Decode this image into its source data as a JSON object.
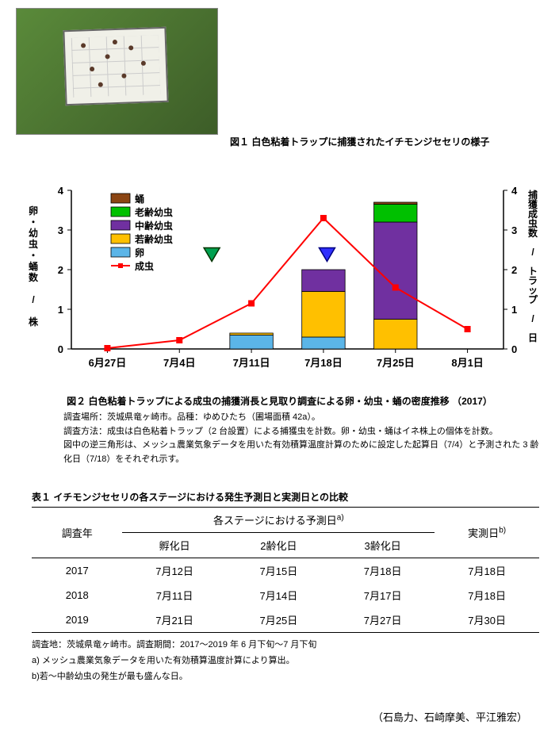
{
  "fig1": {
    "caption": "図１ 白色粘着トラップに捕獲されたイチモンジセセリの様子"
  },
  "chart": {
    "type": "combo-stacked-bar-line",
    "categories": [
      "6月27日",
      "7月4日",
      "7月11日",
      "7月18日",
      "7月25日",
      "8月1日"
    ],
    "left_axis": {
      "label": "卵・幼虫・蛹数 / 株",
      "ylim": [
        0,
        4
      ],
      "ticks": [
        0,
        1,
        2,
        3,
        4
      ],
      "label_fontsize": 12
    },
    "right_axis": {
      "label": "捕獲成虫数 / トラップ / 日",
      "ylim": [
        0,
        4
      ],
      "ticks": [
        0,
        1,
        2,
        3,
        4
      ],
      "label_fontsize": 12
    },
    "bar_width": 0.6,
    "series": [
      {
        "name": "蛹",
        "color": "#8b4513",
        "values": [
          0,
          0,
          0,
          0,
          0.05,
          0
        ]
      },
      {
        "name": "老齢幼虫",
        "color": "#00c000",
        "values": [
          0,
          0,
          0,
          0,
          0.45,
          0
        ]
      },
      {
        "name": "中齢幼虫",
        "color": "#7030a0",
        "values": [
          0,
          0,
          0,
          0.55,
          2.45,
          0
        ]
      },
      {
        "name": "若齢幼虫",
        "color": "#ffc000",
        "values": [
          0,
          0,
          0.05,
          1.15,
          0.75,
          0
        ]
      },
      {
        "name": "卵",
        "color": "#5bb5e8",
        "values": [
          0,
          0,
          0.35,
          0.3,
          0,
          0
        ]
      }
    ],
    "line_series": {
      "name": "成虫",
      "color": "#ff0000",
      "marker": "square",
      "marker_size": 7,
      "line_width": 2,
      "values": [
        0.02,
        0.22,
        1.15,
        3.3,
        1.55,
        0.5
      ]
    },
    "annotation_triangles": [
      {
        "x_index": 1.45,
        "color_fill": "#00a050",
        "color_stroke": "#003300"
      },
      {
        "x_index": 3.05,
        "color_fill": "#3030ff",
        "color_stroke": "#000080"
      }
    ],
    "tick_fontsize": 13,
    "background_color": "#ffffff",
    "axis_color": "#000000"
  },
  "fig2": {
    "caption": "図２ 白色粘着トラップによる成虫の捕獲消長と見取り調査による卵・幼虫・蛹の密度推移 （2017）",
    "note1": "調査場所：茨城県竜ヶ崎市。品種：ゆめひたち（圃場面積 42a）。",
    "note2": "調査方法：成虫は白色粘着トラップ（2 台設置）による捕獲虫を計数。卵・幼虫・蛹はイネ株上の個体を計数。",
    "note3": "図中の逆三角形は、メッシュ農業気象データを用いた有効積算温度計算のために設定した起算日（7/4）と予測された 3 齢化日（7/18）をそれぞれ示す。"
  },
  "table": {
    "title": "表１ イチモンジセセリの各ステージにおける発生予測日と実測日との比較",
    "header": {
      "survey_year": "調査年",
      "predicted_group": "各ステージにおける予測日",
      "predicted_group_sup": "a)",
      "actual": "実測日",
      "actual_sup": "b)",
      "col_hatch": "孵化日",
      "col_2nd": "2齢化日",
      "col_3rd": "3齢化日"
    },
    "rows": [
      {
        "year": "2017",
        "hatch": "7月12日",
        "second": "7月15日",
        "third": "7月18日",
        "actual": "7月18日"
      },
      {
        "year": "2018",
        "hatch": "7月11日",
        "second": "7月14日",
        "third": "7月17日",
        "actual": "7月18日"
      },
      {
        "year": "2019",
        "hatch": "7月21日",
        "second": "7月25日",
        "third": "7月27日",
        "actual": "7月30日"
      }
    ],
    "note1": "調査地：茨城県竜ヶ崎市。調査期間：2017～2019 年 6 月下旬～7 月下旬",
    "note2": "a) メッシュ農業気象データを用いた有効積算温度計算により算出。",
    "note3": "b)若～中齢幼虫の発生が最も盛んな日。"
  },
  "authors": "（石島力、石崎摩美、平江雅宏）"
}
